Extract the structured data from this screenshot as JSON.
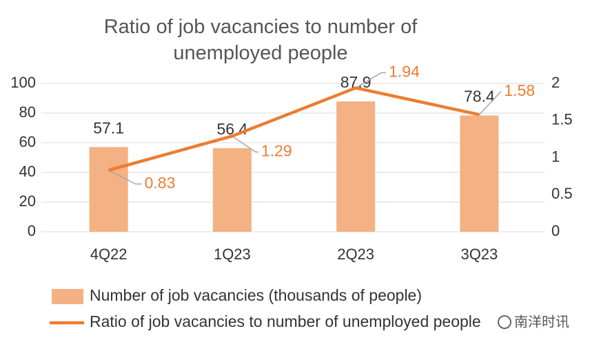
{
  "chart_data": {
    "type": "bar-line",
    "title": "Ratio of job vacancies to number of unemployed people",
    "categories": [
      "4Q22",
      "1Q23",
      "2Q23",
      "3Q23"
    ],
    "series": [
      {
        "name": "Number of job vacancies (thousands of people)",
        "color": "#f4b183",
        "type": "bar",
        "values": [
          57.1,
          56.4,
          87.9,
          78.4
        ]
      },
      {
        "name": "Ratio of job vacancies to number of unemployed people",
        "color": "#ed7d31",
        "type": "line",
        "axis": "y2",
        "values": [
          0.83,
          1.29,
          1.94,
          1.58
        ]
      }
    ],
    "ylim": [
      0,
      100
    ],
    "yticks": [
      0,
      20,
      40,
      60,
      80,
      100
    ],
    "y2lim": [
      0,
      2
    ],
    "y2ticks": [
      0,
      0.5,
      1,
      1.5,
      2
    ],
    "grid": true,
    "legend": "bottom",
    "watermark": "南洋时讯"
  }
}
